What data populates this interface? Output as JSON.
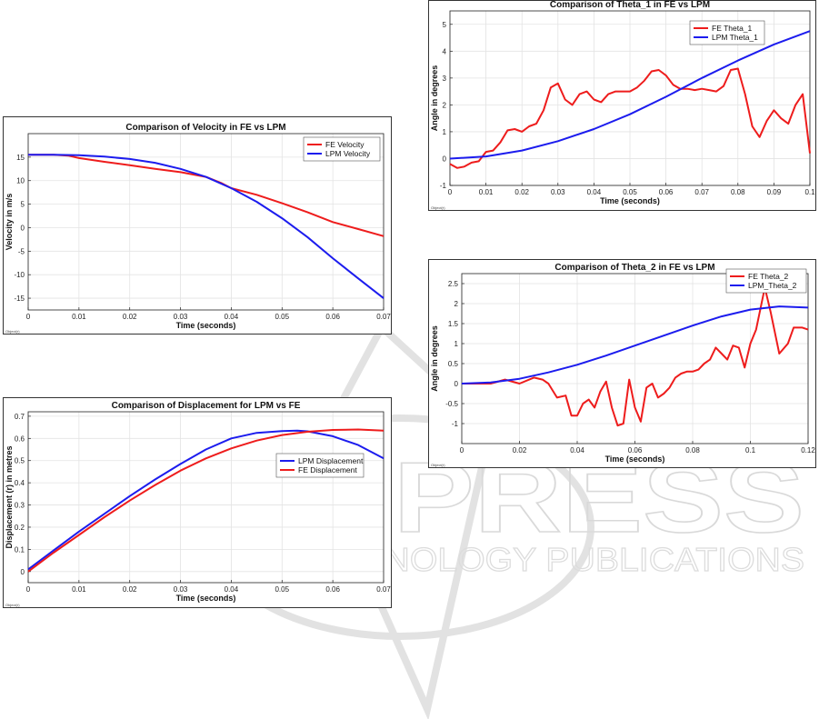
{
  "watermark": {
    "main": "SCITEPRESS",
    "sub": "SCIENCE AND TECHNOLOGY PUBLICATIONS"
  },
  "chart_data": [
    {
      "id": "velocity",
      "type": "line",
      "title": "Comparison of Velocity in FE vs LPM",
      "xlabel": "Time (seconds)",
      "ylabel": "Velocity in m/s",
      "xlim": [
        0,
        0.07
      ],
      "ylim": [
        -17.5,
        20
      ],
      "xticks": [
        0,
        0.01,
        0.02,
        0.03,
        0.04,
        0.05,
        0.06,
        0.07
      ],
      "yticks": [
        -15,
        -10,
        -5,
        0,
        5,
        10,
        15
      ],
      "xtick_labels": [
        "0",
        "0.01",
        "0.02",
        "0.03",
        "0.04",
        "0.05",
        "0.06",
        "0.07"
      ],
      "ytick_labels": [
        "-15",
        "-10",
        "-5",
        "0",
        "5",
        "10",
        "15"
      ],
      "grid": true,
      "legend_position": "top-right",
      "corner_label": "Object(r)",
      "series": [
        {
          "name": "FE Velocity",
          "color": "#ee1c1c",
          "x": [
            0,
            0.005,
            0.008,
            0.01,
            0.015,
            0.02,
            0.025,
            0.03,
            0.035,
            0.038,
            0.04,
            0.045,
            0.05,
            0.055,
            0.06,
            0.065,
            0.07
          ],
          "y": [
            15.5,
            15.5,
            15.3,
            14.8,
            14.0,
            13.3,
            12.5,
            11.8,
            10.8,
            9.5,
            8.4,
            7.0,
            5.2,
            3.3,
            1.2,
            -0.3,
            -1.8
          ]
        },
        {
          "name": "LPM Velocity",
          "color": "#1c1cee",
          "x": [
            0,
            0.005,
            0.01,
            0.015,
            0.02,
            0.025,
            0.03,
            0.035,
            0.04,
            0.045,
            0.05,
            0.055,
            0.06,
            0.065,
            0.07
          ],
          "y": [
            15.5,
            15.5,
            15.4,
            15.1,
            14.6,
            13.8,
            12.5,
            10.8,
            8.4,
            5.5,
            2.0,
            -2.0,
            -6.5,
            -10.8,
            -15.0
          ]
        }
      ]
    },
    {
      "id": "displacement",
      "type": "line",
      "title": "Comparison of Displacement for LPM vs FE",
      "xlabel": "Time (seconds)",
      "ylabel": "Displacement (r) in metres",
      "xlim": [
        0,
        0.07
      ],
      "ylim": [
        -0.05,
        0.72
      ],
      "xticks": [
        0,
        0.01,
        0.02,
        0.03,
        0.04,
        0.05,
        0.06,
        0.07
      ],
      "yticks": [
        0,
        0.1,
        0.2,
        0.3,
        0.4,
        0.5,
        0.6,
        0.7
      ],
      "xtick_labels": [
        "0",
        "0.01",
        "0.02",
        "0.03",
        "0.04",
        "0.05",
        "0.06",
        "0.07"
      ],
      "ytick_labels": [
        "0",
        "0.1",
        "0.2",
        "0.3",
        "0.4",
        "0.5",
        "0.6",
        "0.7"
      ],
      "grid": true,
      "legend_position": "middle-right",
      "corner_label": "Object(r)",
      "series": [
        {
          "name": "LPM Displacement",
          "color": "#1c1cee",
          "x": [
            0,
            0.005,
            0.01,
            0.015,
            0.02,
            0.025,
            0.03,
            0.035,
            0.04,
            0.045,
            0.05,
            0.053,
            0.055,
            0.06,
            0.065,
            0.07
          ],
          "y": [
            0.01,
            0.095,
            0.18,
            0.26,
            0.34,
            0.415,
            0.485,
            0.55,
            0.6,
            0.625,
            0.633,
            0.635,
            0.632,
            0.61,
            0.57,
            0.51
          ]
        },
        {
          "name": "FE Displacement",
          "color": "#ee1c1c",
          "x": [
            0,
            0.005,
            0.01,
            0.015,
            0.02,
            0.025,
            0.03,
            0.035,
            0.04,
            0.045,
            0.05,
            0.055,
            0.06,
            0.065,
            0.07
          ],
          "y": [
            0.0,
            0.085,
            0.165,
            0.245,
            0.32,
            0.39,
            0.455,
            0.51,
            0.555,
            0.59,
            0.615,
            0.63,
            0.638,
            0.64,
            0.635
          ]
        }
      ]
    },
    {
      "id": "theta1",
      "type": "line",
      "title": "Comparison of Theta_1 in FE vs LPM",
      "xlabel": "Time (seconds)",
      "ylabel": "Angle in degrees",
      "xlim": [
        0,
        0.1
      ],
      "ylim": [
        -1,
        5.5
      ],
      "xticks": [
        0,
        0.01,
        0.02,
        0.03,
        0.04,
        0.05,
        0.06,
        0.07,
        0.08,
        0.09,
        0.1
      ],
      "yticks": [
        -1,
        0,
        1,
        2,
        3,
        4,
        5
      ],
      "xtick_labels": [
        "0",
        "0.01",
        "0.02",
        "0.03",
        "0.04",
        "0.05",
        "0.06",
        "0.07",
        "0.08",
        "0.09",
        "0.1"
      ],
      "ytick_labels": [
        "-1",
        "0",
        "1",
        "2",
        "3",
        "4",
        "5"
      ],
      "grid": true,
      "legend_position": "top-right",
      "corner_label": "Object(r)",
      "series": [
        {
          "name": "FE Theta_1",
          "color": "#ee1c1c",
          "x": [
            0,
            0.002,
            0.004,
            0.006,
            0.008,
            0.01,
            0.012,
            0.014,
            0.016,
            0.018,
            0.02,
            0.022,
            0.024,
            0.026,
            0.028,
            0.03,
            0.032,
            0.034,
            0.036,
            0.038,
            0.04,
            0.042,
            0.044,
            0.046,
            0.048,
            0.05,
            0.052,
            0.054,
            0.056,
            0.058,
            0.06,
            0.062,
            0.064,
            0.066,
            0.068,
            0.07,
            0.072,
            0.074,
            0.076,
            0.078,
            0.08,
            0.082,
            0.084,
            0.086,
            0.088,
            0.09,
            0.092,
            0.094,
            0.096,
            0.098,
            0.1
          ],
          "y": [
            -0.2,
            -0.35,
            -0.3,
            -0.15,
            -0.1,
            0.25,
            0.3,
            0.6,
            1.05,
            1.1,
            1.0,
            1.2,
            1.3,
            1.8,
            2.65,
            2.8,
            2.2,
            2.0,
            2.4,
            2.5,
            2.2,
            2.1,
            2.4,
            2.5,
            2.5,
            2.5,
            2.65,
            2.9,
            3.25,
            3.3,
            3.1,
            2.75,
            2.6,
            2.6,
            2.55,
            2.6,
            2.55,
            2.5,
            2.7,
            3.3,
            3.35,
            2.4,
            1.2,
            0.8,
            1.4,
            1.8,
            1.5,
            1.3,
            2.0,
            2.4,
            0.2
          ]
        },
        {
          "name": "LPM Theta_1",
          "color": "#1c1cee",
          "x": [
            0,
            0.01,
            0.02,
            0.03,
            0.04,
            0.05,
            0.06,
            0.07,
            0.08,
            0.09,
            0.1
          ],
          "y": [
            0.0,
            0.08,
            0.3,
            0.65,
            1.1,
            1.65,
            2.3,
            3.0,
            3.65,
            4.25,
            4.75
          ]
        }
      ]
    },
    {
      "id": "theta2",
      "type": "line",
      "title": "Comparison of Theta_2 in FE vs LPM",
      "xlabel": "Time (seconds)",
      "ylabel": "Angle in degrees",
      "xlim": [
        0,
        0.12
      ],
      "ylim": [
        -1.5,
        2.75
      ],
      "xticks": [
        0,
        0.02,
        0.04,
        0.06,
        0.08,
        0.1,
        0.12
      ],
      "yticks": [
        -1,
        -0.5,
        0,
        0.5,
        1,
        1.5,
        2,
        2.5
      ],
      "xtick_labels": [
        "0",
        "0.02",
        "0.04",
        "0.06",
        "0.08",
        "0.1",
        "0.12"
      ],
      "ytick_labels": [
        "-1",
        "-0.5",
        "0",
        "0.5",
        "1",
        "1.5",
        "2",
        "2.5"
      ],
      "grid": true,
      "legend_position": "top-right",
      "corner_label": "Object(r)",
      "series": [
        {
          "name": "FE Theta_2",
          "color": "#ee1c1c",
          "x": [
            0,
            0.005,
            0.01,
            0.015,
            0.02,
            0.025,
            0.028,
            0.03,
            0.033,
            0.036,
            0.038,
            0.04,
            0.042,
            0.044,
            0.046,
            0.048,
            0.05,
            0.052,
            0.054,
            0.056,
            0.058,
            0.06,
            0.062,
            0.064,
            0.066,
            0.068,
            0.07,
            0.072,
            0.074,
            0.076,
            0.078,
            0.08,
            0.082,
            0.084,
            0.086,
            0.088,
            0.09,
            0.092,
            0.094,
            0.096,
            0.098,
            0.1,
            0.102,
            0.105,
            0.107,
            0.11,
            0.113,
            0.115,
            0.118,
            0.12
          ],
          "y": [
            0.0,
            0.0,
            0.0,
            0.1,
            0.0,
            0.15,
            0.1,
            0.0,
            -0.35,
            -0.3,
            -0.8,
            -0.8,
            -0.5,
            -0.4,
            -0.6,
            -0.2,
            0.05,
            -0.6,
            -1.05,
            -1.0,
            0.1,
            -0.6,
            -0.95,
            -0.1,
            0.0,
            -0.35,
            -0.25,
            -0.1,
            0.15,
            0.25,
            0.3,
            0.3,
            0.35,
            0.5,
            0.6,
            0.9,
            0.75,
            0.6,
            0.95,
            0.9,
            0.4,
            1.0,
            1.35,
            2.4,
            1.8,
            0.75,
            1.0,
            1.4,
            1.4,
            1.35
          ]
        },
        {
          "name": "LPM_Theta_2",
          "color": "#1c1cee",
          "x": [
            0,
            0.01,
            0.02,
            0.03,
            0.04,
            0.05,
            0.06,
            0.07,
            0.08,
            0.09,
            0.1,
            0.11,
            0.12
          ],
          "y": [
            0.0,
            0.03,
            0.12,
            0.28,
            0.47,
            0.7,
            0.95,
            1.2,
            1.45,
            1.68,
            1.85,
            1.93,
            1.9
          ]
        }
      ]
    }
  ]
}
